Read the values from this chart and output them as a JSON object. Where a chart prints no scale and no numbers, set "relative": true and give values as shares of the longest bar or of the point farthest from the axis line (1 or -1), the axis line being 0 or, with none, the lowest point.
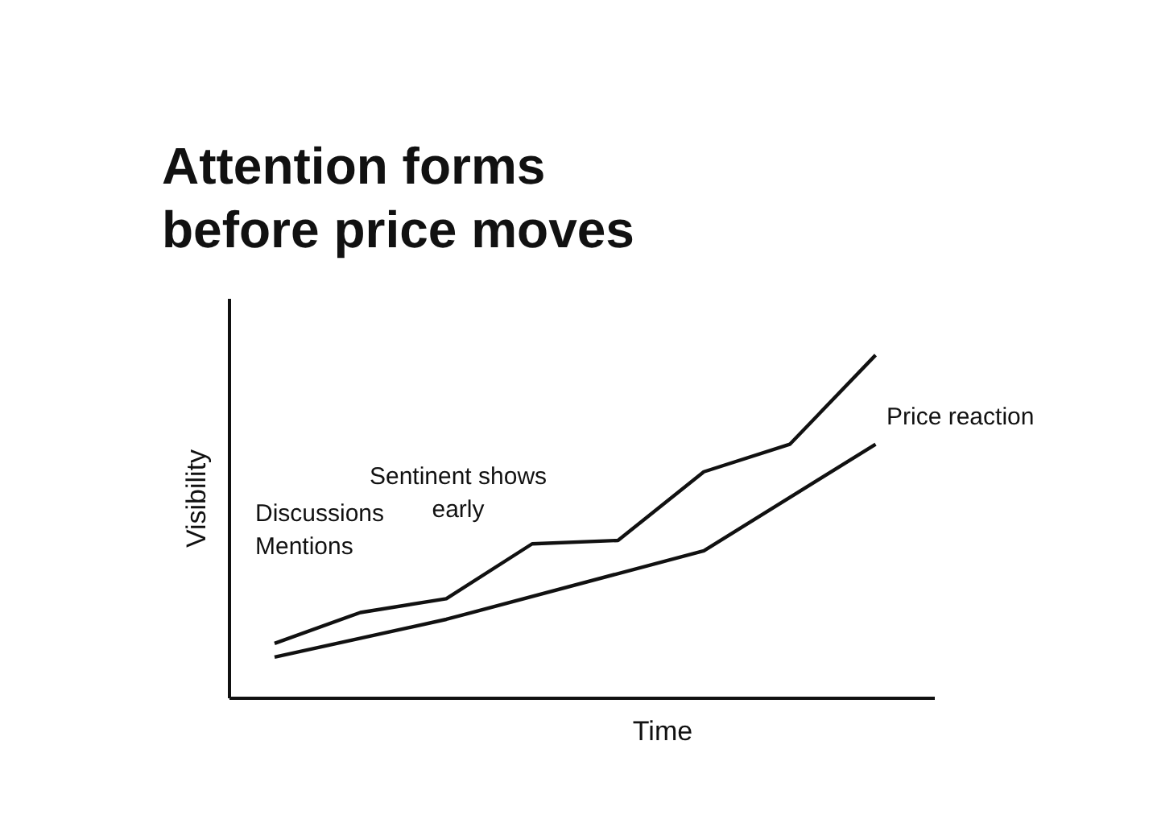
{
  "chart_data": {
    "type": "line",
    "title": "Attention forms before price moves",
    "xlabel": "Time",
    "ylabel": "Visibility",
    "categories": [
      null,
      null,
      null,
      null,
      null,
      null,
      null,
      null
    ],
    "relative": true,
    "series": [
      {
        "color": "#111111",
        "values": [
          0.16,
          0.25,
          0.29,
          0.45,
          0.46,
          0.66,
          0.74,
          1.0
        ]
      },
      {
        "color": "#111111",
        "values": [
          0.12,
          null,
          0.23,
          null,
          null,
          0.43,
          null,
          0.74
        ]
      }
    ],
    "annotations": [
      "Discussions\nMentions",
      "Sentinent shows\nearly",
      "Price reaction"
    ]
  }
}
